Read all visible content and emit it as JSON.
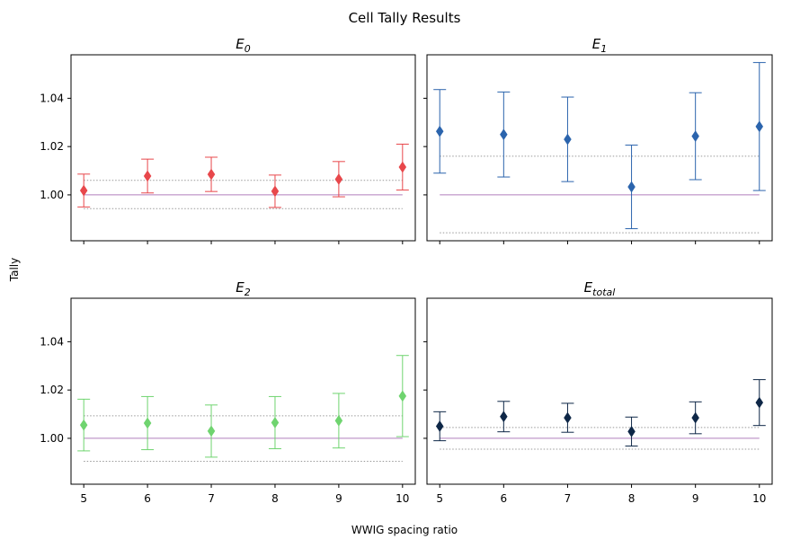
{
  "chart_data": {
    "type": "scatter",
    "title": "Cell Tally Results",
    "xlabel": "WWIG spacing ratio",
    "ylabel": "Tally",
    "x": [
      5,
      6,
      7,
      8,
      9,
      10
    ],
    "xticks": [
      "5",
      "6",
      "7",
      "8",
      "9",
      "10"
    ],
    "xlim": [
      4.8,
      10.2
    ],
    "ylim": [
      0.981,
      1.058
    ],
    "yticks": [
      "1.00",
      "1.02",
      "1.04"
    ],
    "yticks_values": [
      1.0,
      1.02,
      1.04
    ],
    "reference_line": 1.0,
    "grid": false,
    "marker": "diamond",
    "panels": [
      {
        "title_base": "E",
        "title_sub": "0",
        "color": "#e8474b",
        "values": [
          1.0018,
          1.0078,
          1.0085,
          1.0015,
          1.0065,
          1.0115
        ],
        "errors": [
          0.0068,
          0.007,
          0.0071,
          0.0067,
          0.0073,
          0.0095
        ],
        "band": [
          0.9943,
          1.006
        ]
      },
      {
        "title_base": "E",
        "title_sub": "1",
        "color": "#2b64ad",
        "values": [
          1.0263,
          1.025,
          1.023,
          1.0033,
          1.0243,
          1.0283
        ],
        "errors": [
          0.0173,
          0.0176,
          0.0175,
          0.0173,
          0.018,
          0.0265
        ],
        "band": [
          0.9843,
          1.016
        ]
      },
      {
        "title_base": "E",
        "title_sub": "2",
        "color": "#6fd46f",
        "values": [
          1.0055,
          1.0063,
          1.003,
          1.0065,
          1.0073,
          1.0175
        ],
        "errors": [
          0.0107,
          0.011,
          0.0108,
          0.0108,
          0.0113,
          0.0168
        ],
        "band": [
          0.9905,
          1.0093
        ]
      },
      {
        "title_base": "E",
        "title_sub": "total",
        "color": "#0e2747",
        "values": [
          1.005,
          1.009,
          1.0085,
          1.0028,
          1.0085,
          1.0148
        ],
        "errors": [
          0.006,
          0.0063,
          0.006,
          0.006,
          0.0066,
          0.0095
        ],
        "band": [
          0.9955,
          1.0045
        ]
      }
    ]
  }
}
